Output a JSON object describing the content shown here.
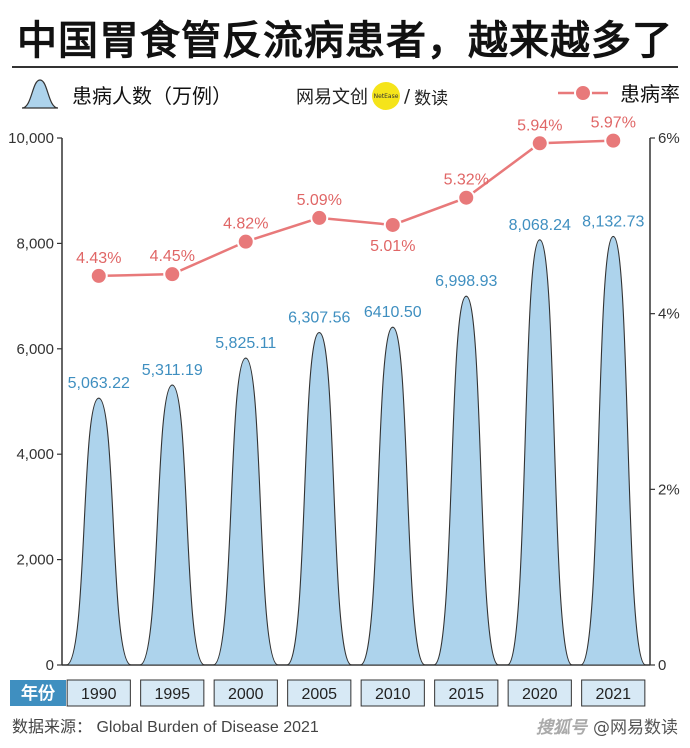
{
  "title": "中国胃食管反流病患者，越来越多了",
  "legend": {
    "bar_label": "患病人数（万例）",
    "line_label": "患病率"
  },
  "brand": {
    "name": "网易文创",
    "badge": "NetEase",
    "separator": "/",
    "sub": "数读"
  },
  "source": "数据来源： Global Burden of Disease 2021",
  "watermark": {
    "mark": "搜狐号",
    "at": "@网易数读"
  },
  "colors": {
    "bar_fill": "#add3ec",
    "bar_stroke": "#333333",
    "bar_label": "#3f8fc0",
    "line": "#e8797a",
    "line_label": "#e06666",
    "year_box": "#d7e9f5",
    "year_tag": "#3f8fc0"
  },
  "chart_data": {
    "type": "bar",
    "title": "中国胃食管反流病患者，越来越多了",
    "xlabel": "年份",
    "categories": [
      "1990",
      "1995",
      "2000",
      "2005",
      "2010",
      "2015",
      "2020",
      "2021"
    ],
    "series": [
      {
        "name": "患病人数（万例）",
        "type": "bar",
        "axis": "left",
        "values": [
          5063.22,
          5311.19,
          5825.11,
          6307.56,
          6410.5,
          6998.93,
          8068.24,
          8132.73
        ],
        "labels": [
          "5,063.22",
          "5,311.19",
          "5,825.11",
          "6,307.56",
          "6410.50",
          "6,998.93",
          "8,068.24",
          "8,132.73"
        ]
      },
      {
        "name": "患病率",
        "type": "line",
        "axis": "right",
        "values": [
          4.43,
          4.45,
          4.82,
          5.09,
          5.01,
          5.32,
          5.94,
          5.97
        ],
        "labels": [
          "4.43%",
          "4.45%",
          "4.82%",
          "5.09%",
          "5.01%",
          "5.32%",
          "5.94%",
          "5.97%"
        ]
      }
    ],
    "ylim_left": [
      0,
      10000
    ],
    "yticks_left": [
      "0",
      "2,000",
      "4,000",
      "6,000",
      "8,000",
      "10,000"
    ],
    "ylim_right": [
      0,
      6
    ],
    "yticks_right": [
      "0",
      "2%",
      "4%",
      "6%"
    ],
    "grid": false
  }
}
